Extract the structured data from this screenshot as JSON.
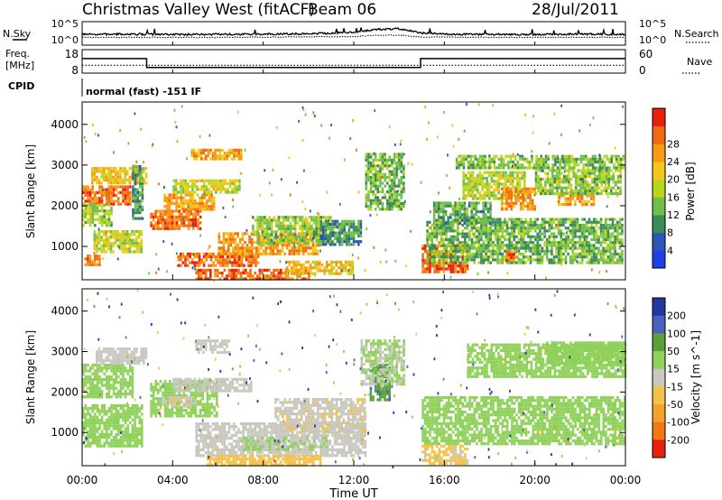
{
  "header": {
    "title": "Christmas Valley West (fitACF)",
    "beam": "Beam 06",
    "date": "28/Jul/2011"
  },
  "noise_panel": {
    "left_label": "N.Sky",
    "right_label": "N.Search",
    "left_ticks": [
      "10^5",
      "10^0"
    ],
    "right_ticks": [
      "10^5",
      "10^0"
    ]
  },
  "freq_panel": {
    "left_label_1": "Freq.",
    "left_label_2": "[MHz]",
    "right_label": "Nave",
    "left_ticks": [
      "18",
      "8"
    ],
    "right_ticks": [
      "60",
      "0"
    ]
  },
  "cpid": {
    "label": "CPID",
    "text": "normal (fast) -151 IF"
  },
  "x_axis": {
    "label": "Time UT",
    "ticks": [
      "00:00",
      "04:00",
      "08:00",
      "12:00",
      "16:00",
      "20:00",
      "00:00"
    ]
  },
  "chart_data": [
    {
      "type": "line",
      "title": "N.Sky / N.Search",
      "x_range_hours": [
        0,
        24
      ],
      "y_scale": "log",
      "ylim": [
        "10^0",
        "10^5"
      ],
      "series": [
        {
          "name": "N.Sky",
          "x": [
            0,
            2,
            4,
            6,
            8,
            10,
            12,
            13,
            14,
            15,
            16,
            18,
            20,
            22,
            24
          ],
          "level": [
            2.2,
            2.3,
            2.2,
            2.2,
            2.3,
            2.4,
            2.8,
            3.6,
            3.8,
            2.6,
            2.3,
            2.2,
            2.2,
            2.3,
            2.2
          ]
        },
        {
          "name": "N.Search",
          "x": [
            0,
            6,
            12,
            13,
            14,
            15,
            18,
            24
          ],
          "level": [
            1.4,
            1.4,
            1.6,
            2.0,
            2.0,
            1.5,
            1.4,
            1.4
          ]
        }
      ]
    },
    {
      "type": "line",
      "title": "Freq. / Nave",
      "x_range_hours": [
        0,
        24
      ],
      "series": [
        {
          "name": "Freq. [MHz]",
          "x": [
            0,
            2.85,
            2.85,
            14.95,
            14.95,
            24
          ],
          "y": [
            14.2,
            14.2,
            10.4,
            10.4,
            14.2,
            14.2
          ],
          "ylim": [
            8,
            18
          ]
        },
        {
          "name": "Nave",
          "x": [
            0,
            24
          ],
          "y": [
            20,
            20
          ],
          "ylim": [
            0,
            60
          ]
        }
      ]
    },
    {
      "type": "heatmap",
      "title": "Power",
      "xlabel": "Time UT",
      "ylabel": "Slant Range [km]",
      "xlim_hours": [
        0,
        24
      ],
      "ylim_km": [
        180,
        4550
      ],
      "y_ticks": [
        1000,
        2000,
        3000,
        4000
      ],
      "colorbar_label": "Power [dB]",
      "colorbar_ticks": [
        4,
        8,
        12,
        16,
        20,
        24,
        28
      ],
      "colorbar_colors": [
        "#1f3fe6",
        "#2f55b8",
        "#3a8a5a",
        "#6fbf4a",
        "#b7d61d",
        "#f2c81a",
        "#f79a14",
        "#f26a12",
        "#e8200f"
      ],
      "regions": [
        {
          "t": [
            0.0,
            2.1
          ],
          "r": [
            2050,
            2500
          ],
          "p": 26
        },
        {
          "t": [
            0.4,
            2.8
          ],
          "r": [
            2550,
            2950
          ],
          "p": 20
        },
        {
          "t": [
            0.0,
            1.3
          ],
          "r": [
            1550,
            2050
          ],
          "p": 14
        },
        {
          "t": [
            0.1,
            0.8
          ],
          "r": [
            550,
            800
          ],
          "p": 25
        },
        {
          "t": [
            0.5,
            2.6
          ],
          "r": [
            900,
            1400
          ],
          "p": 17
        },
        {
          "t": [
            2.2,
            2.7
          ],
          "r": [
            1700,
            3000
          ],
          "p": 10
        },
        {
          "t": [
            3.0,
            5.2
          ],
          "r": [
            1450,
            1900
          ],
          "p": 26
        },
        {
          "t": [
            3.6,
            5.8
          ],
          "r": [
            1900,
            2300
          ],
          "p": 22
        },
        {
          "t": [
            4.0,
            7.0
          ],
          "r": [
            2300,
            2650
          ],
          "p": 17
        },
        {
          "t": [
            4.8,
            7.0
          ],
          "r": [
            3150,
            3400
          ],
          "p": 22
        },
        {
          "t": [
            4.2,
            7.8
          ],
          "r": [
            500,
            850
          ],
          "p": 26
        },
        {
          "t": [
            6.0,
            10.5
          ],
          "r": [
            850,
            1350
          ],
          "p": 23
        },
        {
          "t": [
            7.5,
            11.0
          ],
          "r": [
            1100,
            1750
          ],
          "p": 14
        },
        {
          "t": [
            10.5,
            12.3
          ],
          "r": [
            1050,
            1650
          ],
          "p": 9
        },
        {
          "t": [
            5.0,
            10.0
          ],
          "r": [
            200,
            450
          ],
          "p": 27
        },
        {
          "t": [
            9.0,
            12.0
          ],
          "r": [
            350,
            650
          ],
          "p": 20
        },
        {
          "t": [
            12.5,
            14.2
          ],
          "r": [
            1900,
            3300
          ],
          "p": 12
        },
        {
          "t": [
            15.0,
            17.0
          ],
          "r": [
            350,
            1050
          ],
          "p": 27
        },
        {
          "t": [
            16.8,
            19.5
          ],
          "r": [
            2150,
            2850
          ],
          "p": 16
        },
        {
          "t": [
            18.5,
            20.0
          ],
          "r": [
            1900,
            2450
          ],
          "p": 24
        },
        {
          "t": [
            21.0,
            22.6
          ],
          "r": [
            2000,
            2350
          ],
          "p": 24
        },
        {
          "t": [
            20.0,
            23.8
          ],
          "r": [
            2300,
            2900
          ],
          "p": 14
        },
        {
          "t": [
            15.2,
            23.9
          ],
          "r": [
            600,
            1700
          ],
          "p": 12
        },
        {
          "t": [
            16.5,
            23.9
          ],
          "r": [
            2900,
            3250
          ],
          "p": 13
        },
        {
          "t": [
            18.7,
            19.2
          ],
          "r": [
            650,
            900
          ],
          "p": 27
        },
        {
          "t": [
            15.5,
            18.0
          ],
          "r": [
            1550,
            2100
          ],
          "p": 11
        }
      ]
    },
    {
      "type": "heatmap",
      "title": "Velocity",
      "xlabel": "Time UT",
      "ylabel": "Slant Range [km]",
      "xlim_hours": [
        0,
        24
      ],
      "ylim_km": [
        180,
        4550
      ],
      "y_ticks": [
        1000,
        2000,
        3000,
        4000
      ],
      "colorbar_label": "Velocity [m s^-1]",
      "colorbar_ticks": [
        200,
        100,
        50,
        15,
        -15,
        -50,
        -100,
        -200
      ],
      "colorbar_colors": [
        "#23389e",
        "#4a5fbf",
        "#5aa03a",
        "#8fd15a",
        "#c8c8c0",
        "#f2c24a",
        "#f5a12a",
        "#f27814",
        "#e8200f"
      ],
      "regions": [
        {
          "t": [
            0.0,
            2.2
          ],
          "r": [
            1900,
            2700
          ],
          "v": 0
        },
        {
          "t": [
            0.6,
            2.8
          ],
          "r": [
            2700,
            3100
          ],
          "v": -30
        },
        {
          "t": [
            0.0,
            2.6
          ],
          "r": [
            700,
            1700
          ],
          "v": 0
        },
        {
          "t": [
            3.0,
            6.0
          ],
          "r": [
            1400,
            2300
          ],
          "v": 0
        },
        {
          "t": [
            3.5,
            5.0
          ],
          "r": [
            1650,
            1900
          ],
          "v": -40
        },
        {
          "t": [
            4.0,
            7.5
          ],
          "r": [
            2000,
            2350
          ],
          "v": -35
        },
        {
          "t": [
            5.0,
            6.5
          ],
          "r": [
            3000,
            3300
          ],
          "v": -30
        },
        {
          "t": [
            5.0,
            12.5
          ],
          "r": [
            450,
            1250
          ],
          "v": -35
        },
        {
          "t": [
            8.5,
            12.5
          ],
          "r": [
            1050,
            1850
          ],
          "v": -40
        },
        {
          "t": [
            7.0,
            10.8
          ],
          "r": [
            600,
            900
          ],
          "v": -15
        },
        {
          "t": [
            5.5,
            10.5
          ],
          "r": [
            200,
            450
          ],
          "v": -70
        },
        {
          "t": [
            12.7,
            13.6
          ],
          "r": [
            1800,
            2700
          ],
          "v": 40
        },
        {
          "t": [
            12.3,
            14.2
          ],
          "r": [
            2200,
            3300
          ],
          "v": -15
        },
        {
          "t": [
            15.0,
            24.0
          ],
          "r": [
            700,
            1900
          ],
          "v": 0
        },
        {
          "t": [
            15.0,
            17.0
          ],
          "r": [
            250,
            700
          ],
          "v": -60
        },
        {
          "t": [
            17.0,
            24.0
          ],
          "r": [
            2400,
            3200
          ],
          "v": 0
        },
        {
          "t": [
            20.5,
            24.0
          ],
          "r": [
            2700,
            3250
          ],
          "v": 0
        }
      ]
    }
  ]
}
